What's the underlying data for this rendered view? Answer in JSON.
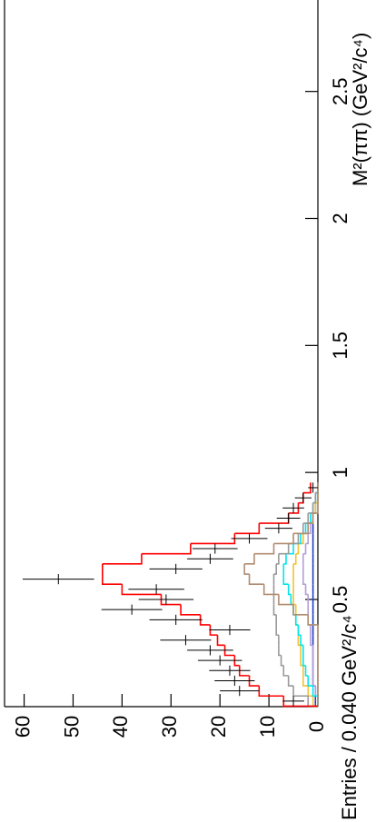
{
  "chart_data": {
    "type": "histogram",
    "x_label": "M²(ππ) (GeV²/c⁴)",
    "y_label": "Entries / 0.040 GeV²/c⁴",
    "bins": [
      0.08,
      0.12,
      0.16,
      0.2,
      0.24,
      0.28,
      0.32,
      0.36,
      0.4,
      0.44,
      0.48,
      0.52,
      0.56,
      0.6,
      0.64,
      0.68,
      0.72,
      0.76,
      0.8,
      0.84,
      0.88,
      0.92,
      0.96
    ],
    "series": [
      {
        "color": "#2040c0",
        "values": [
          0.5,
          0.5,
          1,
          1,
          1,
          1,
          1,
          1,
          1,
          1,
          1,
          1,
          1,
          1,
          1,
          1,
          1,
          1,
          1,
          0.5,
          0.5,
          0
        ]
      },
      {
        "color": "#b39ddb",
        "values": [
          0,
          0.5,
          1,
          1,
          1,
          1,
          1.5,
          1.5,
          2,
          2,
          2,
          2.5,
          3,
          3,
          3,
          2.5,
          2,
          1.5,
          1,
          0.5,
          0,
          0
        ]
      },
      {
        "color": "#f2c230",
        "values": [
          1,
          2,
          3,
          3,
          3.5,
          3.5,
          4,
          4,
          4.5,
          4.5,
          5,
          5,
          5,
          5,
          4.5,
          4,
          3,
          2,
          1,
          0.5,
          0,
          0
        ]
      },
      {
        "color": "#00e5ee",
        "values": [
          0,
          1,
          2,
          2.5,
          3,
          3,
          3.5,
          4,
          4.5,
          5,
          5.5,
          6,
          7,
          7,
          6.5,
          5,
          3.5,
          2.5,
          1.5,
          1,
          0.5,
          0
        ]
      },
      {
        "color": "#999999",
        "values": [
          2,
          5,
          6,
          7,
          7.5,
          8,
          8,
          8.5,
          8.5,
          9,
          9,
          9,
          9,
          8.5,
          8,
          6,
          4,
          3,
          2,
          1,
          0.5,
          0
        ]
      },
      {
        "color": "#b08c70",
        "values": [
          0,
          0,
          0,
          0,
          0,
          0,
          0,
          0,
          2,
          5,
          8,
          11,
          14,
          15,
          13,
          9,
          5,
          2,
          1,
          0,
          0,
          0
        ]
      },
      {
        "color": "#ff0000",
        "values": [
          7,
          12,
          14,
          16,
          17,
          19,
          20.5,
          22,
          24,
          28,
          32,
          40,
          44,
          44,
          36,
          26,
          17,
          12,
          6,
          4,
          3,
          1.5
        ]
      }
    ],
    "points": {
      "color": "#000000",
      "x": [
        0.1,
        0.14,
        0.18,
        0.22,
        0.26,
        0.3,
        0.34,
        0.38,
        0.42,
        0.46,
        0.5,
        0.54,
        0.58,
        0.62,
        0.66,
        0.7,
        0.74,
        0.78,
        0.82,
        0.86,
        0.9,
        0.94
      ],
      "values": [
        5,
        16,
        17,
        18,
        20,
        22,
        27,
        18,
        29,
        38,
        31,
        33,
        53,
        29,
        22,
        21,
        14,
        8,
        6,
        5,
        3,
        1
      ],
      "errors": [
        2.2,
        4,
        4.1,
        4.2,
        4.5,
        4.7,
        5.2,
        4.2,
        5.4,
        6.2,
        5.6,
        5.7,
        7.3,
        5.4,
        4.7,
        4.6,
        3.7,
        2.8,
        2.4,
        2.2,
        1.7,
        1
      ]
    },
    "xlim": [
      0.078,
      2.86
    ],
    "xticks": [
      0.5,
      1,
      1.5,
      2,
      2.5
    ],
    "ylim": [
      0,
      64
    ],
    "yticks": [
      0,
      10,
      20,
      30,
      40,
      50,
      60
    ]
  }
}
